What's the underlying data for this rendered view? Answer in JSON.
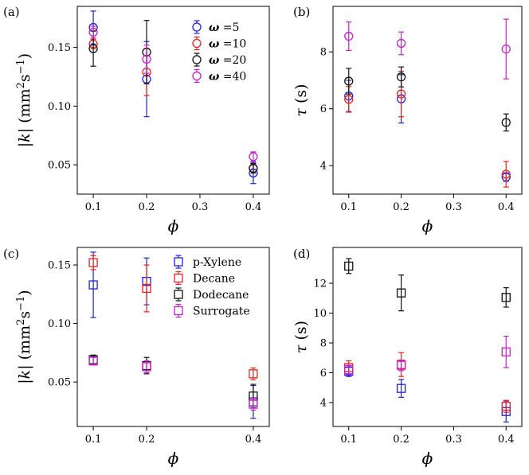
{
  "chart_data": [
    {
      "panel": "(a)",
      "type": "scatter",
      "xlabel": "ϕ",
      "ylabel_parts": {
        "pre": "|",
        "sym": "k",
        "mid": "| (mm",
        "sup1": "2",
        "mid2": "s",
        "sup2": "−1",
        "post": ")"
      },
      "xlim": [
        0.07,
        0.43
      ],
      "ylim": [
        0.025,
        0.185
      ],
      "xticks": [
        0.1,
        0.2,
        0.3,
        0.4
      ],
      "xtick_labels": [
        "0.1",
        "0.2",
        "0.3",
        "0.4"
      ],
      "yticks": [
        0.05,
        0.1,
        0.15
      ],
      "ytick_labels": [
        "0.05",
        "0.10",
        "0.15"
      ],
      "marker": "circle",
      "legend": {
        "position": "top-right",
        "prefix": "ω"
      },
      "series": [
        {
          "name": "=5",
          "color": "#1f1fdd",
          "x": [
            0.1,
            0.2,
            0.4
          ],
          "y": [
            0.167,
            0.123,
            0.043
          ],
          "err": [
            0.014,
            0.032,
            0.009
          ]
        },
        {
          "name": "=10",
          "color": "#e8221c",
          "x": [
            0.1,
            0.2,
            0.4
          ],
          "y": [
            0.153,
            0.129,
            0.047
          ],
          "err": [
            0.004,
            0.02,
            0.004
          ]
        },
        {
          "name": "=20",
          "color": "#111111",
          "x": [
            0.1,
            0.2,
            0.4
          ],
          "y": [
            0.149,
            0.146,
            0.047
          ],
          "err": [
            0.015,
            0.027,
            0.004
          ]
        },
        {
          "name": "=40",
          "color": "#c81ec8",
          "x": [
            0.1,
            0.2,
            0.4
          ],
          "y": [
            0.163,
            0.14,
            0.057
          ],
          "err": [
            0.005,
            0.012,
            0.004
          ]
        }
      ]
    },
    {
      "panel": "(b)",
      "type": "scatter",
      "xlabel": "ϕ",
      "ylabel_parts": {
        "sym": "τ",
        "post": " (s)"
      },
      "xlim": [
        0.07,
        0.43
      ],
      "ylim": [
        3.0,
        9.6
      ],
      "xticks": [
        0.1,
        0.2,
        0.3,
        0.4
      ],
      "xtick_labels": [
        "0.1",
        "0.2",
        "0.3",
        "0.4"
      ],
      "yticks": [
        4,
        6,
        8
      ],
      "ytick_labels": [
        "4",
        "6",
        "8"
      ],
      "marker": "circle",
      "series": [
        {
          "name": "=5",
          "color": "#1f1fdd",
          "x": [
            0.1,
            0.2,
            0.4
          ],
          "y": [
            6.45,
            6.35,
            3.6
          ],
          "err": [
            0.55,
            0.85,
            0.15
          ]
        },
        {
          "name": "=10",
          "color": "#e8221c",
          "x": [
            0.1,
            0.2,
            0.4
          ],
          "y": [
            6.33,
            6.52,
            3.7
          ],
          "err": [
            0.45,
            0.8,
            0.45
          ]
        },
        {
          "name": "=20",
          "color": "#111111",
          "x": [
            0.1,
            0.2,
            0.4
          ],
          "y": [
            6.97,
            7.12,
            5.52
          ],
          "err": [
            0.45,
            0.35,
            0.3
          ]
        },
        {
          "name": "=40",
          "color": "#c81ec8",
          "x": [
            0.1,
            0.2,
            0.4
          ],
          "y": [
            8.55,
            8.3,
            8.1
          ],
          "err": [
            0.5,
            0.4,
            1.05
          ]
        }
      ]
    },
    {
      "panel": "(c)",
      "type": "scatter",
      "xlabel": "ϕ",
      "ylabel_parts": {
        "pre": "|",
        "sym": "k",
        "mid": "| (mm",
        "sup1": "2",
        "mid2": "s",
        "sup2": "−1",
        "post": ")"
      },
      "xlim": [
        0.07,
        0.43
      ],
      "ylim": [
        0.012,
        0.165
      ],
      "xticks": [
        0.1,
        0.2,
        0.4
      ],
      "xtick_labels": [
        "0.1",
        "0.2",
        "0.4"
      ],
      "yticks": [
        0.05,
        0.1,
        0.15
      ],
      "ytick_labels": [
        "0.05",
        "0.10",
        "0.15"
      ],
      "marker": "square",
      "legend": {
        "position": "top-right",
        "prefix": ""
      },
      "series": [
        {
          "name": "p-Xylene",
          "color": "#1f1fdd",
          "x": [
            0.1,
            0.2,
            0.4
          ],
          "y": [
            0.133,
            0.136,
            0.033
          ],
          "err": [
            0.028,
            0.02,
            0.014
          ]
        },
        {
          "name": "Decane",
          "color": "#e8221c",
          "x": [
            0.1,
            0.2,
            0.4
          ],
          "y": [
            0.152,
            0.13,
            0.057
          ],
          "err": [
            0.006,
            0.02,
            0.005
          ]
        },
        {
          "name": "Dodecane",
          "color": "#111111",
          "x": [
            0.1,
            0.2,
            0.4
          ],
          "y": [
            0.069,
            0.064,
            0.038
          ],
          "err": [
            0.004,
            0.007,
            0.01
          ]
        },
        {
          "name": "Surrogate",
          "color": "#c81ec8",
          "x": [
            0.1,
            0.2,
            0.4
          ],
          "y": [
            0.068,
            0.063,
            0.031
          ],
          "err": [
            0.003,
            0.005,
            0.005
          ]
        }
      ]
    },
    {
      "panel": "(d)",
      "type": "scatter",
      "xlabel": "ϕ",
      "ylabel_parts": {
        "sym": "τ",
        "post": " (s)"
      },
      "xlim": [
        0.07,
        0.43
      ],
      "ylim": [
        2.4,
        14.4
      ],
      "xticks": [
        0.1,
        0.2,
        0.3,
        0.4
      ],
      "xtick_labels": [
        "0.1",
        "0.2",
        "0.3",
        "0.4"
      ],
      "yticks": [
        4,
        6,
        8,
        10,
        12
      ],
      "ytick_labels": [
        "4",
        "6",
        "8",
        "10",
        "12"
      ],
      "marker": "square",
      "series": [
        {
          "name": "p-Xylene",
          "color": "#1f1fdd",
          "x": [
            0.1,
            0.2,
            0.4
          ],
          "y": [
            6.1,
            4.95,
            3.4
          ],
          "err": [
            0.35,
            0.6,
            0.7
          ]
        },
        {
          "name": "Decane",
          "color": "#e8221c",
          "x": [
            0.1,
            0.2,
            0.4
          ],
          "y": [
            6.35,
            6.55,
            3.75
          ],
          "err": [
            0.45,
            0.8,
            0.4
          ]
        },
        {
          "name": "Dodecane",
          "color": "#111111",
          "x": [
            0.1,
            0.2,
            0.4
          ],
          "y": [
            13.15,
            11.35,
            11.05
          ],
          "err": [
            0.5,
            1.2,
            0.65
          ]
        },
        {
          "name": "Surrogate",
          "color": "#c81ec8",
          "x": [
            0.1,
            0.2,
            0.4
          ],
          "y": [
            6.2,
            6.5,
            7.4
          ],
          "err": [
            0.3,
            0.35,
            1.05
          ]
        }
      ]
    }
  ]
}
